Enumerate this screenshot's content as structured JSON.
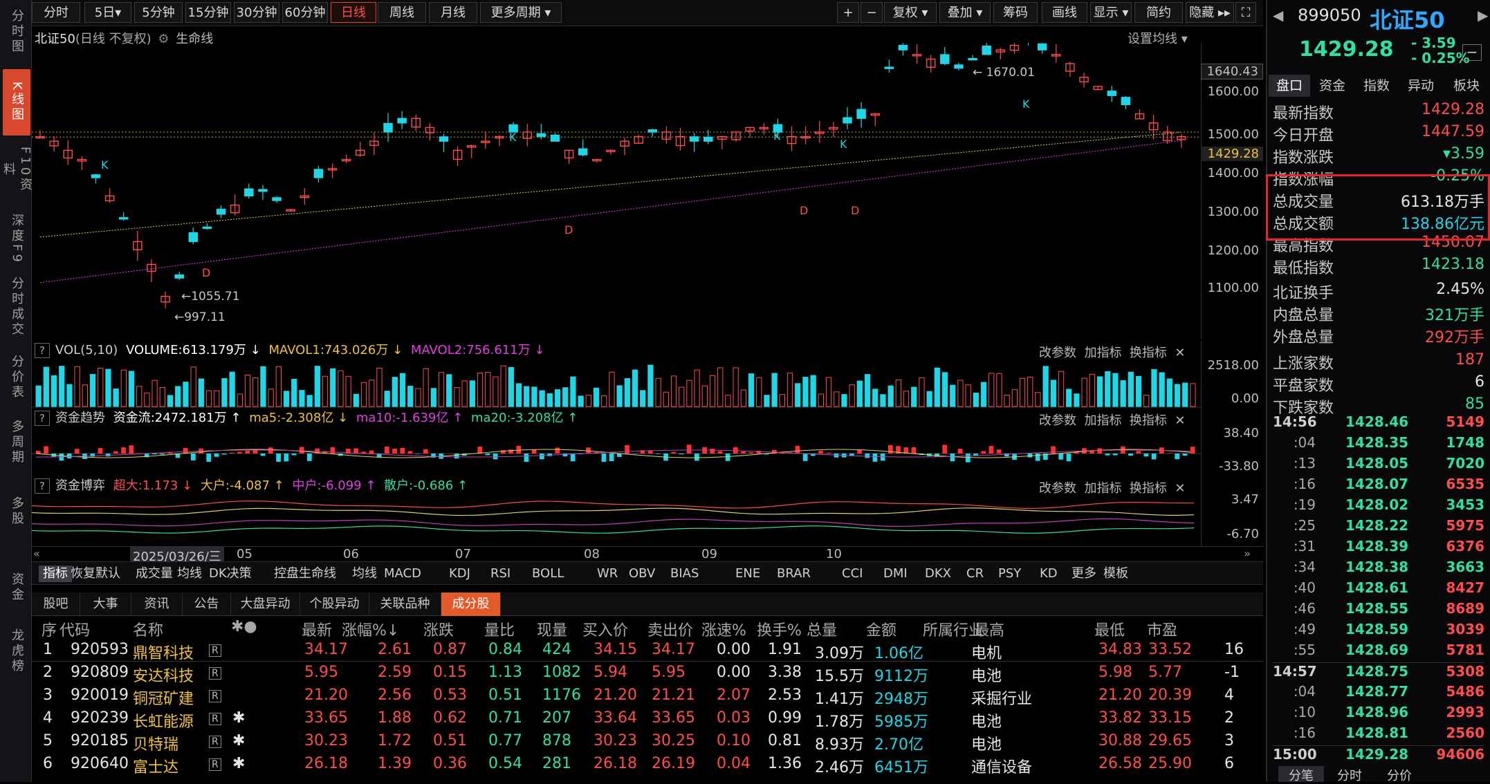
{
  "leftnav": [
    "分时图",
    "K线图",
    "F10资料",
    "深度F9",
    "分时成交",
    "分价表",
    "多周期",
    "多股",
    "资金",
    "龙虎榜"
  ],
  "toolbar": {
    "periods": [
      "分时",
      "5日▾",
      "5分钟",
      "15分钟",
      "30分钟",
      "60分钟",
      "日线",
      "周线",
      "月线",
      "更多周期 ▾"
    ],
    "tools": [
      "+",
      "−",
      "复权 ▾",
      "叠加 ▾",
      "筹码",
      "画线",
      "显示 ▾",
      "简约",
      "隐藏 ▸▸",
      "⛶"
    ]
  },
  "chart": {
    "title": "北证50",
    "subtitle": "(日线 不复权)",
    "gear": "⚙",
    "lifeline": "生命线",
    "setma": "设置均线 ▾",
    "marks": {
      "high": "1670.01",
      "low1": "1055.71",
      "low2": "997.11",
      "k": "K",
      "d": "D"
    },
    "yticks": [
      "1640.43",
      "1600.00",
      "1500.00",
      "1429.28",
      "1400.00",
      "1300.00",
      "1200.00",
      "1100.00"
    ],
    "date_label": "2025/03/26/三",
    "months": [
      "05",
      "06",
      "07",
      "08",
      "09",
      "10"
    ]
  },
  "vol": {
    "qm": "?",
    "label": "VOL(5,10)",
    "volume": "VOLUME:613.179万 ↓",
    "ma1": "MAVOL1:743.026万 ↓",
    "ma2": "MAVOL2:756.611万 ↓",
    "yticks": [
      "2518.00",
      "0.00"
    ]
  },
  "flow": {
    "qm": "?",
    "label": "资金趋势",
    "val": "资金流:2472.181万 ↑",
    "ma5": "ma5:-2.308亿 ↓",
    "ma10": "ma10:-1.639亿 ↑",
    "ma20": "ma20:-3.208亿 ↑",
    "yticks": [
      "38.40",
      "-33.80"
    ]
  },
  "game": {
    "qm": "?",
    "label": "资金博弈",
    "big": "超大:1.173 ↓",
    "large": "大户:-4.087 ↑",
    "mid": "中户:-6.099 ↑",
    "small": "散户:-0.686 ↑",
    "yticks": [
      "3.47",
      "-6.70"
    ]
  },
  "paneltools": {
    "a": "改参数",
    "b": "加指标",
    "c": "换指标",
    "x": "✕"
  },
  "indicators": [
    "指标",
    "恢复默认",
    "成交量",
    "均线",
    "DK决策",
    "控盘生命线",
    "均线",
    "MACD",
    "KDJ",
    "RSI",
    "BOLL",
    "WR",
    "OBV",
    "BIAS",
    "ENE",
    "BRAR",
    "CCI",
    "DMI",
    "DKX",
    "CR",
    "PSY",
    "KD",
    "更多",
    "模板"
  ],
  "tabs": [
    "股吧",
    "大事",
    "资讯",
    "公告",
    "大盘异动",
    "个股异动",
    "关联品种",
    "成分股"
  ],
  "columns": [
    "序",
    "代码",
    "名称",
    "✱●",
    "最新",
    "涨幅%↓",
    "涨跌",
    "量比",
    "现量",
    "买入价",
    "卖出价",
    "涨速%",
    "换手%",
    "总量",
    "金额",
    "所属行业",
    "最高",
    "最低",
    "市盈"
  ],
  "rows": [
    [
      "1",
      "920593",
      "鼎智科技",
      "R",
      "",
      "34.17",
      "2.61",
      "0.87",
      "0.84",
      "424",
      "34.15",
      "34.17",
      "0.00",
      "1.91",
      "3.09万",
      "1.06亿",
      "电机",
      "34.83",
      "33.52",
      "16"
    ],
    [
      "2",
      "920809",
      "安达科技",
      "R",
      "",
      "5.95",
      "2.59",
      "0.15",
      "1.13",
      "1082",
      "5.94",
      "5.95",
      "0.00",
      "3.38",
      "15.5万",
      "9112万",
      "电池",
      "5.98",
      "5.77",
      "-1"
    ],
    [
      "3",
      "920019",
      "铜冠矿建",
      "R",
      "",
      "21.20",
      "2.56",
      "0.53",
      "0.51",
      "1176",
      "21.20",
      "21.21",
      "2.07",
      "2.53",
      "1.41万",
      "2948万",
      "采掘行业",
      "21.20",
      "20.39",
      "4"
    ],
    [
      "4",
      "920239",
      "长虹能源",
      "R",
      "✱",
      "33.65",
      "1.88",
      "0.62",
      "0.71",
      "207",
      "33.64",
      "33.65",
      "0.03",
      "0.99",
      "1.78万",
      "5985万",
      "电池",
      "33.82",
      "33.15",
      "2"
    ],
    [
      "5",
      "920185",
      "贝特瑞",
      "R",
      "✱",
      "30.23",
      "1.72",
      "0.51",
      "0.77",
      "878",
      "30.23",
      "30.25",
      "0.10",
      "0.81",
      "8.93万",
      "2.70亿",
      "电池",
      "30.88",
      "29.65",
      "3"
    ],
    [
      "6",
      "920640",
      "富士达",
      "R",
      "✱",
      "26.18",
      "1.39",
      "0.36",
      "0.54",
      "281",
      "26.18",
      "26.19",
      "0.04",
      "1.36",
      "2.46万",
      "6451万",
      "通信设备",
      "26.58",
      "25.90",
      "6"
    ]
  ],
  "quote": {
    "code": "899050",
    "name": "北证50",
    "price": "1429.28",
    "chg": "- 3.59",
    "pct": "- 0.25%",
    "minus": "−",
    "prev": "◀",
    "next": "▶",
    "tabs": [
      "盘口",
      "资金",
      "指数",
      "异动",
      "板块"
    ],
    "kv": [
      [
        "最新指数",
        "1429.28",
        "r"
      ],
      [
        "今日开盘",
        "1447.59",
        "r"
      ],
      [
        "指数涨跌",
        "▾3.59",
        "g"
      ],
      [
        "指数涨幅",
        "-0.25%",
        "g"
      ],
      [
        "总成交量",
        "613.18万手",
        "w"
      ],
      [
        "总成交额",
        "138.86亿元",
        "c"
      ],
      [
        "最高指数",
        "1450.07",
        "r"
      ],
      [
        "最低指数",
        "1423.18",
        "g"
      ],
      [
        "北证换手",
        "2.45%",
        "w"
      ],
      [
        "内盘总量",
        "321万手",
        "g"
      ],
      [
        "外盘总量",
        "292万手",
        "r"
      ],
      [
        "上涨家数",
        "187",
        "r"
      ],
      [
        "平盘家数",
        "6",
        "w"
      ],
      [
        "下跌家数",
        "85",
        "g"
      ]
    ],
    "ticks": [
      [
        "14:56",
        "1428.46",
        "5149",
        "r"
      ],
      [
        ":04",
        "1428.35",
        "1748",
        "g"
      ],
      [
        ":13",
        "1428.05",
        "7020",
        "g"
      ],
      [
        ":16",
        "1428.07",
        "6535",
        "r"
      ],
      [
        ":19",
        "1428.02",
        "3453",
        "g"
      ],
      [
        ":25",
        "1428.22",
        "5975",
        "r"
      ],
      [
        ":31",
        "1428.39",
        "6376",
        "r"
      ],
      [
        ":34",
        "1428.38",
        "3663",
        "g"
      ],
      [
        ":40",
        "1428.61",
        "8427",
        "r"
      ],
      [
        ":46",
        "1428.55",
        "8689",
        "r"
      ],
      [
        ":49",
        "1428.59",
        "3039",
        "r"
      ],
      [
        ":55",
        "1428.69",
        "5781",
        "r"
      ],
      [
        "14:57",
        "1428.75",
        "5308",
        "r"
      ],
      [
        ":04",
        "1428.77",
        "5486",
        "r"
      ],
      [
        ":10",
        "1428.96",
        "2993",
        "r"
      ],
      [
        ":16",
        "1428.81",
        "2560",
        "r"
      ],
      [
        "15:00",
        "1429.28",
        "94606",
        "r"
      ]
    ],
    "bottomtabs": [
      "分笔",
      "分时",
      "分价"
    ]
  }
}
